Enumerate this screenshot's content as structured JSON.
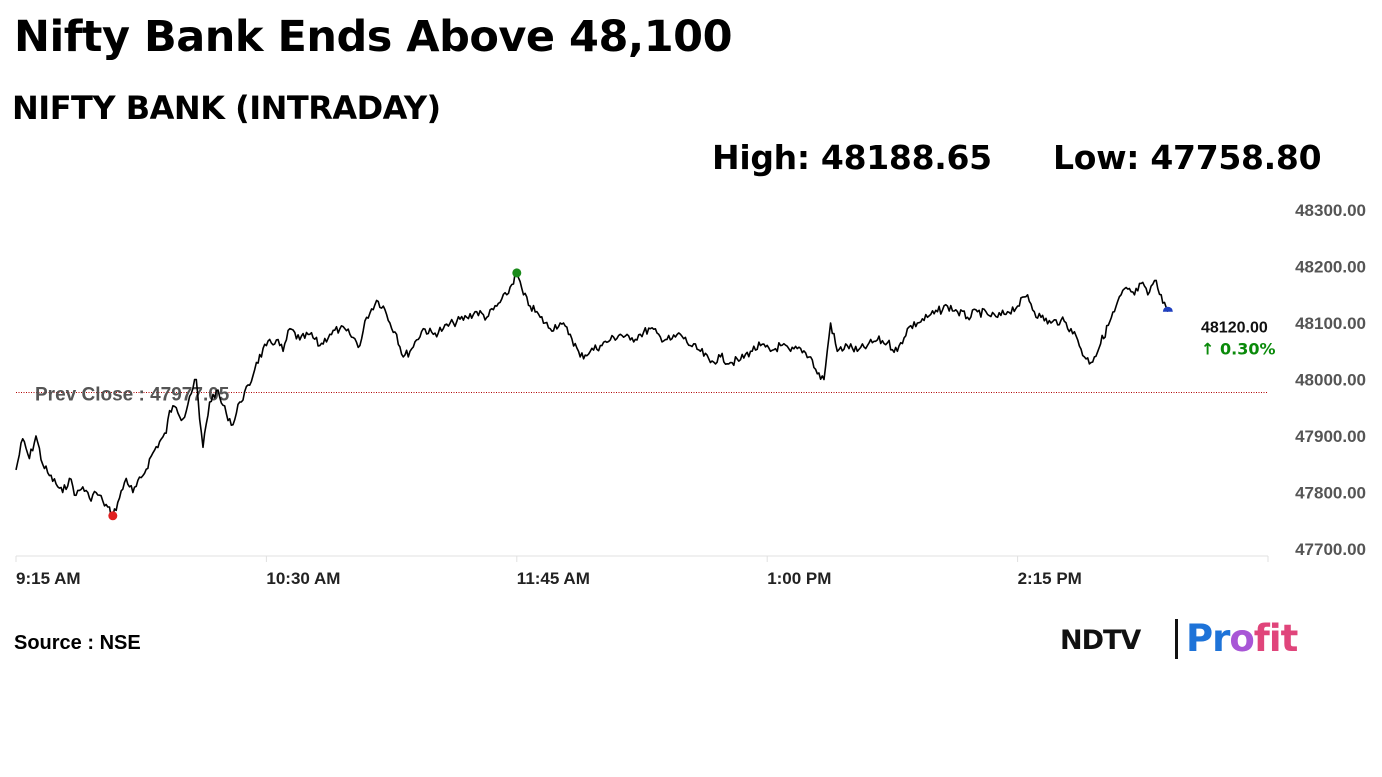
{
  "headline": "Nifty Bank Ends Above 48,100",
  "subtitle": "NIFTY BANK (INTRADAY)",
  "stats": {
    "high": "High: 48188.65",
    "low": "Low: 47758.80"
  },
  "source": "Source : NSE",
  "logo": {
    "brand": "NDTV",
    "product_parts": [
      "Pr",
      "o",
      "fit"
    ]
  },
  "chart_data": {
    "type": "line",
    "ylim": [
      47700,
      48300
    ],
    "y_ticks": [
      48300,
      48200,
      48100,
      48000,
      47900,
      47800,
      47700
    ],
    "y_tick_labels": [
      "48300.00",
      "48200.00",
      "48100.00",
      "48000.00",
      "47900.00",
      "47800.00",
      "47700.00"
    ],
    "x_ticks": [
      "9:15 AM",
      "10:30 AM",
      "11:45 AM",
      "1:00 PM",
      "2:15 PM"
    ],
    "session": [
      "9:15 AM",
      "3:30 PM"
    ],
    "prev_close": 47977.05,
    "prev_close_label": "Prev Close : 47977.05",
    "last_value": 48120.0,
    "last_label": "48120.00",
    "change_label": "↑ 0.30%",
    "high_marker": {
      "time": "11:45 AM",
      "value": 48188.65
    },
    "low_marker": {
      "time": "9:44 AM",
      "value": 47758.8
    },
    "series": [
      {
        "values": [
          [
            "9:15 AM",
            47840
          ],
          [
            "9:17 AM",
            47895
          ],
          [
            "9:19 AM",
            47860
          ],
          [
            "9:21 AM",
            47900
          ],
          [
            "9:23 AM",
            47850
          ],
          [
            "9:25 AM",
            47830
          ],
          [
            "9:27 AM",
            47815
          ],
          [
            "9:29 AM",
            47800
          ],
          [
            "9:31 AM",
            47825
          ],
          [
            "9:33 AM",
            47795
          ],
          [
            "9:35 AM",
            47810
          ],
          [
            "9:37 AM",
            47790
          ],
          [
            "9:39 AM",
            47800
          ],
          [
            "9:41 AM",
            47785
          ],
          [
            "9:44 AM",
            47759
          ],
          [
            "9:46 AM",
            47790
          ],
          [
            "9:48 AM",
            47825
          ],
          [
            "9:50 AM",
            47800
          ],
          [
            "9:53 AM",
            47830
          ],
          [
            "9:56 AM",
            47870
          ],
          [
            "9:58 AM",
            47890
          ],
          [
            "10:00 AM",
            47905
          ],
          [
            "10:01 AM",
            47945
          ],
          [
            "10:03 AM",
            47950
          ],
          [
            "10:05 AM",
            47930
          ],
          [
            "10:07 AM",
            47970
          ],
          [
            "10:09 AM",
            48000
          ],
          [
            "10:10 AM",
            47930
          ],
          [
            "10:11 AM",
            47880
          ],
          [
            "10:13 AM",
            47960
          ],
          [
            "10:15 AM",
            47980
          ],
          [
            "10:18 AM",
            47940
          ],
          [
            "10:20 AM",
            47920
          ],
          [
            "10:22 AM",
            47960
          ],
          [
            "10:25 AM",
            47990
          ],
          [
            "10:27 AM",
            48030
          ],
          [
            "10:30 AM",
            48060
          ],
          [
            "10:33 AM",
            48070
          ],
          [
            "10:35 AM",
            48050
          ],
          [
            "10:37 AM",
            48090
          ],
          [
            "10:40 AM",
            48070
          ],
          [
            "10:43 AM",
            48080
          ],
          [
            "10:46 AM",
            48060
          ],
          [
            "10:49 AM",
            48080
          ],
          [
            "10:52 AM",
            48090
          ],
          [
            "10:55 AM",
            48080
          ],
          [
            "10:58 AM",
            48060
          ],
          [
            "11:00 AM",
            48110
          ],
          [
            "11:03 AM",
            48140
          ],
          [
            "11:05 AM",
            48130
          ],
          [
            "11:07 AM",
            48100
          ],
          [
            "11:09 AM",
            48080
          ],
          [
            "11:11 AM",
            48040
          ],
          [
            "11:13 AM",
            48050
          ],
          [
            "11:15 AM",
            48070
          ],
          [
            "11:17 AM",
            48090
          ],
          [
            "11:20 AM",
            48080
          ],
          [
            "11:23 AM",
            48090
          ],
          [
            "11:26 AM",
            48100
          ],
          [
            "11:30 AM",
            48110
          ],
          [
            "11:33 AM",
            48120
          ],
          [
            "11:36 AM",
            48110
          ],
          [
            "11:39 AM",
            48130
          ],
          [
            "11:42 AM",
            48150
          ],
          [
            "11:45 AM",
            48188
          ],
          [
            "11:47 AM",
            48150
          ],
          [
            "11:49 AM",
            48130
          ],
          [
            "11:52 AM",
            48110
          ],
          [
            "11:55 AM",
            48090
          ],
          [
            "11:58 AM",
            48100
          ],
          [
            "12:01 PM",
            48080
          ],
          [
            "12:04 PM",
            48040
          ],
          [
            "12:07 PM",
            48050
          ],
          [
            "12:10 PM",
            48060
          ],
          [
            "12:13 PM",
            48070
          ],
          [
            "12:16 PM",
            48080
          ],
          [
            "12:19 PM",
            48070
          ],
          [
            "12:22 PM",
            48080
          ],
          [
            "12:25 PM",
            48090
          ],
          [
            "12:28 PM",
            48075
          ],
          [
            "12:31 PM",
            48070
          ],
          [
            "12:34 PM",
            48080
          ],
          [
            "12:37 PM",
            48060
          ],
          [
            "12:40 PM",
            48050
          ],
          [
            "12:43 PM",
            48030
          ],
          [
            "12:46 PM",
            48040
          ],
          [
            "12:49 PM",
            48030
          ],
          [
            "12:52 PM",
            48035
          ],
          [
            "12:55 PM",
            48050
          ],
          [
            "12:58 PM",
            48060
          ],
          [
            "1:01 PM",
            48050
          ],
          [
            "1:04 PM",
            48060
          ],
          [
            "1:07 PM",
            48050
          ],
          [
            "1:10 PM",
            48055
          ],
          [
            "1:13 PM",
            48040
          ],
          [
            "1:15 PM",
            48010
          ],
          [
            "1:17 PM",
            48000
          ],
          [
            "1:19 PM",
            48100
          ],
          [
            "1:21 PM",
            48050
          ],
          [
            "1:24 PM",
            48060
          ],
          [
            "1:27 PM",
            48050
          ],
          [
            "1:30 PM",
            48060
          ],
          [
            "1:33 PM",
            48070
          ],
          [
            "1:36 PM",
            48065
          ],
          [
            "1:39 PM",
            48050
          ],
          [
            "1:42 PM",
            48090
          ],
          [
            "1:45 PM",
            48100
          ],
          [
            "1:48 PM",
            48110
          ],
          [
            "1:51 PM",
            48120
          ],
          [
            "1:54 PM",
            48130
          ],
          [
            "1:57 PM",
            48120
          ],
          [
            "2:00 PM",
            48110
          ],
          [
            "2:03 PM",
            48120
          ],
          [
            "2:06 PM",
            48115
          ],
          [
            "2:09 PM",
            48110
          ],
          [
            "2:12 PM",
            48120
          ],
          [
            "2:15 PM",
            48130
          ],
          [
            "2:18 PM",
            48150
          ],
          [
            "2:20 PM",
            48120
          ],
          [
            "2:22 PM",
            48110
          ],
          [
            "2:25 PM",
            48100
          ],
          [
            "2:28 PM",
            48105
          ],
          [
            "2:31 PM",
            48090
          ],
          [
            "2:33 PM",
            48070
          ],
          [
            "2:35 PM",
            48040
          ],
          [
            "2:37 PM",
            48030
          ],
          [
            "2:38 PM",
            48040
          ],
          [
            "2:44 PM",
            48120
          ],
          [
            "2:46 PM",
            48150
          ],
          [
            "2:48 PM",
            48160
          ],
          [
            "2:50 PM",
            48150
          ],
          [
            "2:52 PM",
            48170
          ],
          [
            "2:54 PM",
            48150
          ],
          [
            "2:56 PM",
            48175
          ],
          [
            "2:58 PM",
            48150
          ],
          [
            "3:00 PM",
            48120
          ]
        ]
      }
    ]
  },
  "colors": {
    "line": "#000000",
    "high_marker": "#1a8a1a",
    "low_marker": "#e02020",
    "last_marker": "#1f3fbf",
    "prev_close_line": "#b00000",
    "grid": "#e0e0e0",
    "axis_text": "#555555",
    "change_text": "#0a8a0a",
    "prev_close_text": "#555555"
  }
}
